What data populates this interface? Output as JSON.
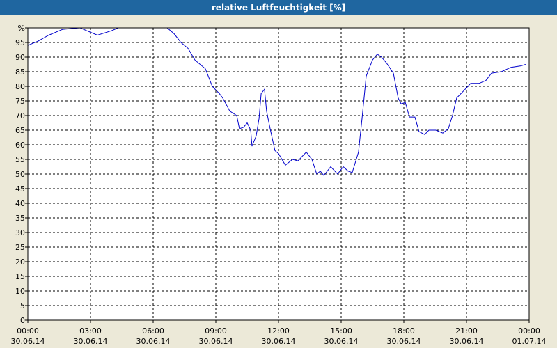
{
  "chart_data": {
    "type": "line",
    "title": "relative Luftfeuchtigkeit [%]",
    "x": [
      0,
      0.5,
      1,
      1.67,
      2.5,
      2.83,
      3.33,
      4,
      4.33,
      6.67,
      7,
      7.33,
      7.67,
      8,
      8.5,
      8.83,
      9.17,
      9.33,
      9.67,
      10,
      10.13,
      10.33,
      10.5,
      10.67,
      10.73,
      10.93,
      11.07,
      11.17,
      11.33,
      11.43,
      11.6,
      11.83,
      12,
      12.33,
      12.67,
      12.93,
      13.33,
      13.6,
      13.83,
      14,
      14.17,
      14.5,
      14.83,
      15.1,
      15.33,
      15.53,
      15.83,
      16,
      16.2,
      16.5,
      16.73,
      16.93,
      17.17,
      17.5,
      17.73,
      17.87,
      18.07,
      18.27,
      18.53,
      18.73,
      19,
      19.2,
      19.53,
      19.87,
      20.13,
      20.33,
      20.53,
      20.87,
      21.2,
      21.6,
      21.93,
      22.2,
      22.67,
      23.13,
      23.6,
      23.83
    ],
    "series": [
      {
        "name": "relative Luftfeuchtigkeit",
        "color": "#0000cc",
        "values": [
          94,
          95.5,
          97.5,
          99.5,
          100,
          99,
          97.5,
          99,
          100,
          100,
          98,
          95,
          93,
          89,
          86,
          80,
          77.5,
          76,
          71.5,
          70,
          65.5,
          66,
          67.5,
          65,
          59.5,
          63,
          69,
          77.5,
          79,
          71.5,
          65.5,
          58,
          57,
          53,
          55,
          54.5,
          57.5,
          55,
          50,
          51,
          49.5,
          52.5,
          50,
          52.5,
          51,
          50.5,
          57.5,
          69,
          83.5,
          89,
          91,
          90,
          88,
          84.5,
          76,
          74,
          74.5,
          69.5,
          69.5,
          64.5,
          63.5,
          65,
          65,
          64,
          65.5,
          70,
          76,
          78.5,
          81,
          81,
          82,
          84.5,
          85,
          86.5,
          87,
          87.5
        ]
      }
    ],
    "xlim": [
      0,
      24
    ],
    "xticks": [
      {
        "value": 0,
        "label": "00:00",
        "date": "30.06.14"
      },
      {
        "value": 3,
        "label": "03:00",
        "date": "30.06.14"
      },
      {
        "value": 6,
        "label": "06:00",
        "date": "30.06.14"
      },
      {
        "value": 9,
        "label": "09:00",
        "date": "30.06.14"
      },
      {
        "value": 12,
        "label": "12:00",
        "date": "30.06.14"
      },
      {
        "value": 15,
        "label": "15:00",
        "date": "30.06.14"
      },
      {
        "value": 18,
        "label": "18:00",
        "date": "30.06.14"
      },
      {
        "value": 21,
        "label": "21:00",
        "date": "30.06.14"
      },
      {
        "value": 24,
        "label": "00:00",
        "date": "01.07.14"
      }
    ],
    "ylim": [
      0,
      100
    ],
    "yticks": [
      0,
      5,
      10,
      15,
      20,
      25,
      30,
      35,
      40,
      45,
      50,
      55,
      60,
      65,
      70,
      75,
      80,
      85,
      90,
      95,
      {
        "value": 100,
        "label": "%"
      }
    ],
    "grid": true
  }
}
